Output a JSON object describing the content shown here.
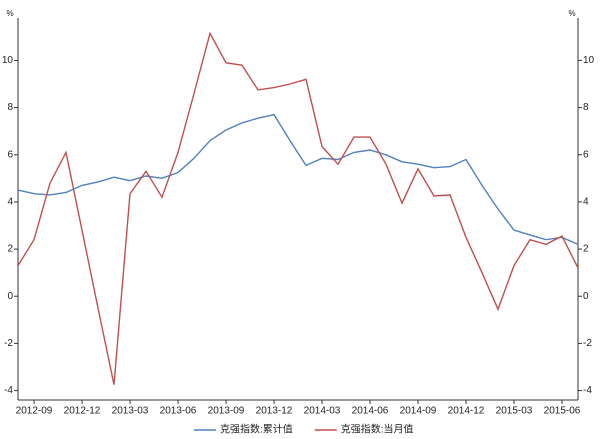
{
  "chart_data": {
    "type": "line",
    "y_label": "%",
    "y2_label": "%",
    "categories": [
      null,
      "2012-09",
      null,
      null,
      "2012-12",
      null,
      null,
      "2013-03",
      null,
      null,
      "2013-06",
      null,
      null,
      "2013-09",
      null,
      null,
      "2013-12",
      null,
      null,
      "2014-03",
      null,
      null,
      "2014-06",
      null,
      null,
      "2014-09",
      null,
      null,
      "2014-12",
      null,
      null,
      "2015-03",
      null,
      null,
      "2015-06",
      null
    ],
    "series": [
      {
        "name": "克强指数:累计值",
        "color": "#4f81bd",
        "values": [
          4.5,
          4.35,
          4.3,
          4.4,
          4.7,
          4.85,
          5.05,
          4.9,
          5.1,
          5.0,
          5.25,
          5.85,
          6.6,
          7.05,
          7.35,
          7.55,
          7.7,
          6.6,
          5.55,
          5.85,
          5.8,
          6.1,
          6.2,
          6.0,
          5.7,
          5.6,
          5.45,
          5.5,
          5.8,
          4.7,
          3.7,
          2.8,
          2.6,
          2.4,
          2.5,
          2.2
        ]
      },
      {
        "name": "克强指数:当月值",
        "color": "#c0504d",
        "values": [
          1.3,
          2.4,
          4.8,
          6.1,
          2.8,
          -0.5,
          -3.75,
          4.35,
          5.3,
          4.2,
          6.1,
          8.6,
          11.15,
          9.9,
          9.8,
          8.75,
          8.85,
          9.0,
          9.2,
          6.35,
          5.6,
          6.75,
          6.75,
          5.6,
          3.95,
          5.4,
          4.25,
          4.3,
          2.5,
          1.0,
          -0.55,
          1.3,
          2.4,
          2.2,
          2.55,
          1.2
        ]
      }
    ],
    "ylim": [
      -4.4,
      11.8
    ],
    "yticks": [
      -4,
      -2,
      0,
      2,
      4,
      6,
      8,
      10
    ],
    "y2lim": [
      -4.4,
      11.8
    ],
    "y2ticks": [
      -4,
      -2,
      0,
      2,
      4,
      6,
      8,
      10
    ],
    "grid": false,
    "legend": "bottom"
  }
}
